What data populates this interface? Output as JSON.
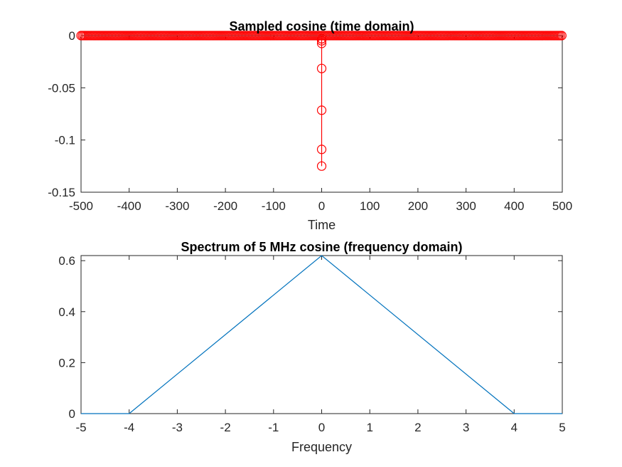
{
  "chart_data": [
    {
      "type": "stem",
      "title": "Sampled cosine (time domain)",
      "xlabel": "Time",
      "ylabel": "",
      "xlim": [
        -500,
        500
      ],
      "ylim": [
        -0.15,
        0
      ],
      "xticks": [
        -500,
        -400,
        -300,
        -200,
        -100,
        0,
        100,
        200,
        300,
        400,
        500
      ],
      "xtick_labels": [
        "-500",
        "-400",
        "-300",
        "-200",
        "-100",
        "0",
        "100",
        "200",
        "300",
        "400",
        "500"
      ],
      "yticks": [
        0,
        -0.05,
        -0.1,
        -0.15
      ],
      "ytick_labels": [
        "0",
        "-0.05",
        "-0.1",
        "-0.15"
      ],
      "series": [
        {
          "color": "#ff0000",
          "marker": "circle",
          "baseline_x_range": [
            -500,
            500
          ],
          "baseline_sample_step": 3,
          "baseline_value": 0,
          "points": [
            {
              "x": 0,
              "y": -0.125
            },
            {
              "x": 0,
              "y": -0.109
            },
            {
              "x": 0,
              "y": -0.0715
            },
            {
              "x": 0,
              "y": -0.0315
            },
            {
              "x": 0,
              "y": -0.0075
            },
            {
              "x": 0,
              "y": -0.005
            },
            {
              "x": 0,
              "y": -0.003
            }
          ]
        }
      ]
    },
    {
      "type": "line",
      "title": "Spectrum of 5 MHz cosine (frequency domain)",
      "xlabel": "Frequency",
      "ylabel": "",
      "xlim": [
        -5,
        5
      ],
      "ylim": [
        0,
        0.62
      ],
      "xticks": [
        -5,
        -4,
        -3,
        -2,
        -1,
        0,
        1,
        2,
        3,
        4,
        5
      ],
      "xtick_labels": [
        "-5",
        "-4",
        "-3",
        "-2",
        "-1",
        "0",
        "1",
        "2",
        "3",
        "4",
        "5"
      ],
      "yticks": [
        0,
        0.2,
        0.4,
        0.6
      ],
      "ytick_labels": [
        "0",
        "0.2",
        "0.4",
        "0.6"
      ],
      "series": [
        {
          "color": "#0072bd",
          "x": [
            -5,
            -4,
            0,
            4,
            5
          ],
          "y": [
            0,
            0,
            0.62,
            0,
            0
          ]
        }
      ]
    }
  ]
}
